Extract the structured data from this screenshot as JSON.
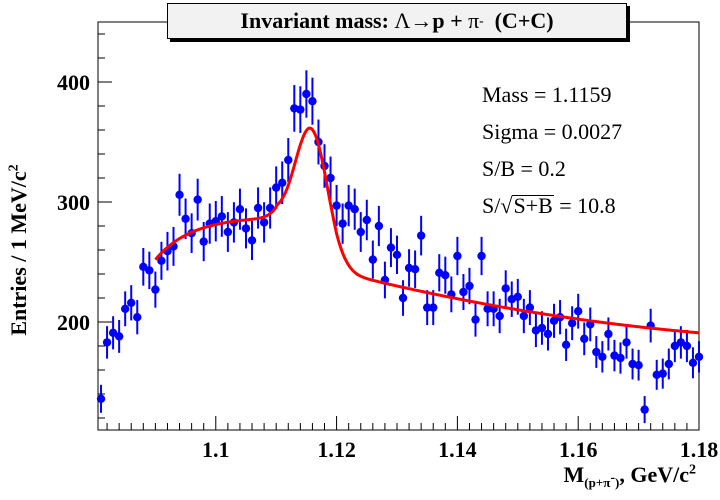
{
  "title": {
    "prefix": "Invariant mass: ",
    "lambda": "Λ",
    "arrow": " → ",
    "decay": "p + ",
    "pion": "π",
    "charge": "-",
    "system": "  (C+C)"
  },
  "axes": {
    "ylabel_main": "Entries / 1 MeV/c",
    "ylabel_sup": "2",
    "xlabel_main": "M",
    "xlabel_sub": "(p+π",
    "xlabel_sub_sup": "-",
    "xlabel_sub_close": ")",
    "xlabel_rest": ", GeV/c",
    "xlabel_sup": "2"
  },
  "stats": {
    "mass": "Mass = 1.1159",
    "sigma": "Sigma = 0.0027",
    "sb": "S/B = 0.2",
    "signif_prefix": "S/",
    "signif_root": "S+B",
    "signif_value": " = 10.8"
  },
  "chart_data": {
    "type": "scatter",
    "title": "Invariant mass: Λ → p + π- (C+C)",
    "xlabel": "M(p+π-), GeV/c2",
    "ylabel": "Entries / 1 MeV/c2",
    "xlim": [
      1.0805,
      1.18
    ],
    "ylim": [
      110,
      450
    ],
    "xticks": [
      1.1,
      1.12,
      1.14,
      1.16,
      1.18
    ],
    "xtick_labels": [
      "1.1",
      "1.12",
      "1.14",
      "1.16",
      "1.18"
    ],
    "yticks": [
      200,
      300,
      400
    ],
    "ytick_labels": [
      "200",
      "300",
      "400"
    ],
    "marker_color": "#0000ff",
    "fit_color": "#ff0000",
    "points": {
      "x": [
        1.081,
        1.082,
        1.083,
        1.084,
        1.085,
        1.086,
        1.087,
        1.088,
        1.089,
        1.09,
        1.091,
        1.092,
        1.093,
        1.094,
        1.095,
        1.096,
        1.097,
        1.098,
        1.099,
        1.1,
        1.101,
        1.102,
        1.103,
        1.104,
        1.105,
        1.106,
        1.107,
        1.108,
        1.109,
        1.11,
        1.111,
        1.112,
        1.113,
        1.114,
        1.115,
        1.116,
        1.117,
        1.118,
        1.119,
        1.12,
        1.121,
        1.122,
        1.123,
        1.124,
        1.125,
        1.126,
        1.127,
        1.128,
        1.129,
        1.13,
        1.131,
        1.132,
        1.133,
        1.134,
        1.135,
        1.136,
        1.137,
        1.138,
        1.139,
        1.14,
        1.141,
        1.142,
        1.143,
        1.144,
        1.145,
        1.146,
        1.147,
        1.148,
        1.149,
        1.15,
        1.151,
        1.152,
        1.153,
        1.154,
        1.155,
        1.156,
        1.157,
        1.158,
        1.159,
        1.16,
        1.161,
        1.162,
        1.163,
        1.164,
        1.165,
        1.166,
        1.167,
        1.168,
        1.169,
        1.17,
        1.171,
        1.172,
        1.173,
        1.174,
        1.175,
        1.176,
        1.177,
        1.178,
        1.179,
        1.18
      ],
      "y": [
        136,
        183,
        191,
        188,
        211,
        216,
        204,
        246,
        243,
        227,
        251,
        259,
        263,
        306,
        286,
        274,
        302,
        267,
        282,
        284,
        288,
        275,
        283,
        294,
        278,
        268,
        295,
        283,
        295,
        312,
        316,
        335,
        378,
        377,
        390,
        384,
        350,
        330,
        320,
        297,
        282,
        297,
        294,
        275,
        285,
        252,
        280,
        235,
        262,
        256,
        220,
        245,
        244,
        272,
        212,
        212,
        241,
        239,
        223,
        255,
        225,
        230,
        202,
        255,
        211,
        211,
        205,
        228,
        219,
        221,
        205,
        212,
        193,
        195,
        190,
        201,
        204,
        181,
        199,
        209,
        186,
        198,
        175,
        171,
        190,
        172,
        170,
        183,
        165,
        164,
        127,
        197,
        156,
        157,
        165,
        180,
        183,
        180,
        166,
        171
      ]
    },
    "fit": {
      "type": "gaussian_plus_background",
      "mean": 1.1159,
      "sigma": 0.0027,
      "amplitude": 100,
      "background": "decreasing",
      "x_start": 1.09,
      "x_end": 1.18
    }
  }
}
